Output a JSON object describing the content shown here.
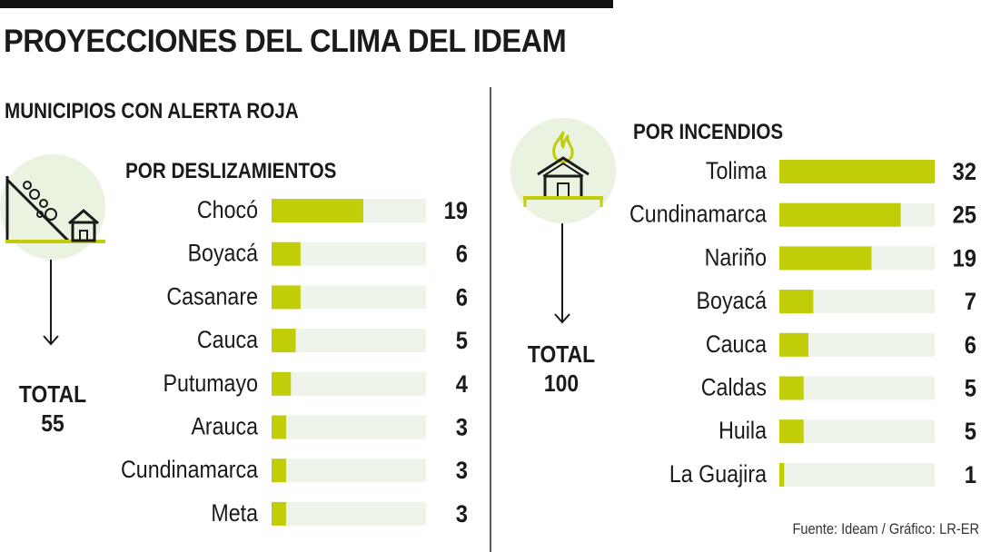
{
  "title": "PROYECCIONES DEL CLIMA DEL IDEAM",
  "subtitle": "MUNICIPIOS CON ALERTA ROJA",
  "source": "Fuente: Ideam / Gráfico: LR-ER",
  "colors": {
    "bar": "#c0cd08",
    "track": "#eff4ea",
    "icon_circle": "#eaf2e0",
    "accent": "#c0cd08",
    "ink": "#1a1a1a"
  },
  "icons": {
    "left": "landslide-house-icon",
    "right": "burning-house-icon"
  },
  "chart_data": [
    {
      "type": "bar",
      "orientation": "horizontal",
      "title": "POR DESLIZAMIENTOS",
      "total_label": "TOTAL",
      "total_value": "55",
      "categories": [
        "Chocó",
        "Boyacá",
        "Casanare",
        "Cauca",
        "Putumayo",
        "Arauca",
        "Cundinamarca",
        "Meta"
      ],
      "values": [
        19,
        6,
        6,
        5,
        4,
        3,
        3,
        3
      ],
      "xlim": [
        0,
        32
      ],
      "grid": false,
      "legend": "none"
    },
    {
      "type": "bar",
      "orientation": "horizontal",
      "title": "POR INCENDIOS",
      "total_label": "TOTAL",
      "total_value": "100",
      "categories": [
        "Tolima",
        "Cundinamarca",
        "Nariño",
        "Boyacá",
        "Cauca",
        "Caldas",
        "Huila",
        "La Guajira"
      ],
      "values": [
        32,
        25,
        19,
        7,
        6,
        5,
        5,
        1
      ],
      "xlim": [
        0,
        32
      ],
      "grid": false,
      "legend": "none"
    }
  ]
}
